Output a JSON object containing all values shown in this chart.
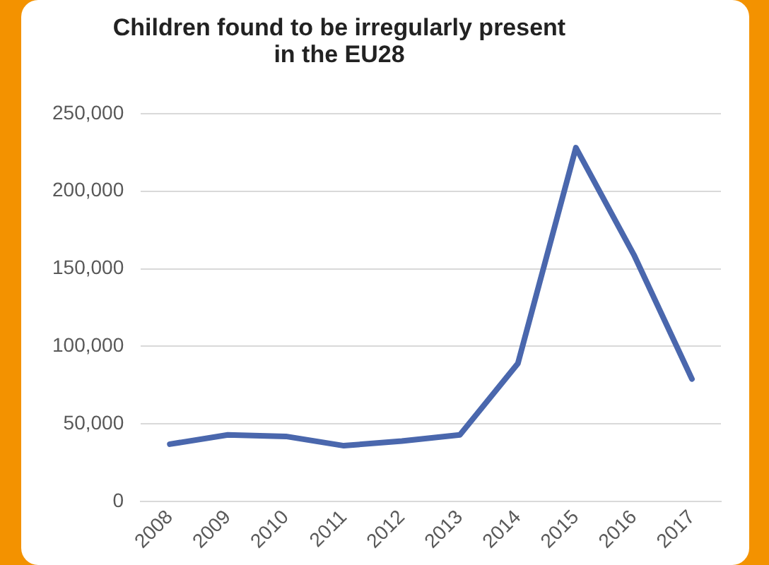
{
  "chart_data": {
    "type": "line",
    "title": "Children found to be irregularly present in the EU28",
    "categories": [
      "2008",
      "2009",
      "2010",
      "2011",
      "2012",
      "2013",
      "2014",
      "2015",
      "2016",
      "2017"
    ],
    "series": [
      {
        "color": "#4a67ad",
        "values": [
          37000,
          43000,
          42000,
          36000,
          39000,
          43000,
          89000,
          228000,
          159000,
          79000
        ]
      }
    ],
    "ylim": [
      0,
      250000
    ],
    "yticks": [
      {
        "value": 0,
        "label": "0"
      },
      {
        "value": 50000,
        "label": "50,000"
      },
      {
        "value": 100000,
        "label": "100,000"
      },
      {
        "value": 150000,
        "label": "150,000"
      },
      {
        "value": 200000,
        "label": "200,000"
      },
      {
        "value": 250000,
        "label": "250,000"
      }
    ],
    "grid": "y",
    "legend": false,
    "marker": "none",
    "line_style": "solid"
  }
}
